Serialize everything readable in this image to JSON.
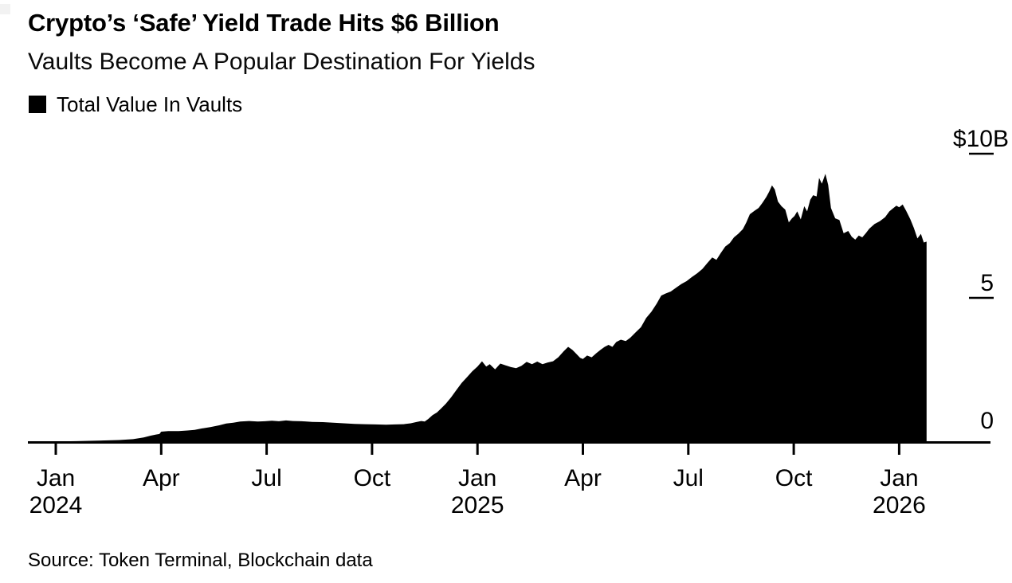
{
  "chart_data": {
    "type": "area",
    "title": "Crypto’s ‘Safe’ Yield Trade Hits $6 Billion",
    "subtitle": "Vaults Become A Popular Destination For Yields",
    "source": "Source: Token Terminal, Blockchain data",
    "background_color": "#ffffff",
    "axis_color": "#000000",
    "grid": false,
    "legend_position": "top-left",
    "series": [
      {
        "name": "Total Value In Vaults",
        "color": "#000000",
        "y_unit": "billions_usd",
        "x_unit": "months_since_jan_2024",
        "points": [
          [
            -0.79,
            0.01
          ],
          [
            -0.4,
            0.02
          ],
          [
            0,
            0.02
          ],
          [
            0.6,
            0.03
          ],
          [
            1.2,
            0.05
          ],
          [
            1.8,
            0.07
          ],
          [
            2.2,
            0.1
          ],
          [
            2.5,
            0.16
          ],
          [
            2.7,
            0.22
          ],
          [
            2.85,
            0.26
          ],
          [
            2.95,
            0.28
          ],
          [
            3.0,
            0.36
          ],
          [
            3.2,
            0.38
          ],
          [
            3.5,
            0.38
          ],
          [
            3.75,
            0.4
          ],
          [
            3.95,
            0.42
          ],
          [
            4.15,
            0.47
          ],
          [
            4.4,
            0.52
          ],
          [
            4.65,
            0.58
          ],
          [
            4.85,
            0.64
          ],
          [
            5.05,
            0.67
          ],
          [
            5.25,
            0.71
          ],
          [
            5.5,
            0.73
          ],
          [
            5.75,
            0.71
          ],
          [
            5.95,
            0.72
          ],
          [
            6.15,
            0.74
          ],
          [
            6.35,
            0.72
          ],
          [
            6.55,
            0.75
          ],
          [
            6.75,
            0.73
          ],
          [
            7.0,
            0.72
          ],
          [
            7.3,
            0.7
          ],
          [
            7.6,
            0.69
          ],
          [
            7.9,
            0.67
          ],
          [
            8.2,
            0.65
          ],
          [
            8.5,
            0.63
          ],
          [
            8.8,
            0.62
          ],
          [
            9.1,
            0.61
          ],
          [
            9.4,
            0.6
          ],
          [
            9.65,
            0.61
          ],
          [
            9.9,
            0.62
          ],
          [
            10.1,
            0.65
          ],
          [
            10.25,
            0.69
          ],
          [
            10.4,
            0.73
          ],
          [
            10.5,
            0.71
          ],
          [
            10.6,
            0.8
          ],
          [
            10.72,
            0.93
          ],
          [
            10.85,
            1.03
          ],
          [
            10.97,
            1.17
          ],
          [
            11.1,
            1.33
          ],
          [
            11.25,
            1.55
          ],
          [
            11.4,
            1.8
          ],
          [
            11.55,
            2.05
          ],
          [
            11.7,
            2.25
          ],
          [
            11.85,
            2.45
          ],
          [
            12.0,
            2.62
          ],
          [
            12.13,
            2.8
          ],
          [
            12.25,
            2.62
          ],
          [
            12.35,
            2.7
          ],
          [
            12.5,
            2.52
          ],
          [
            12.65,
            2.72
          ],
          [
            12.8,
            2.66
          ],
          [
            12.95,
            2.6
          ],
          [
            13.1,
            2.56
          ],
          [
            13.25,
            2.64
          ],
          [
            13.4,
            2.78
          ],
          [
            13.55,
            2.7
          ],
          [
            13.7,
            2.79
          ],
          [
            13.85,
            2.7
          ],
          [
            14.0,
            2.76
          ],
          [
            14.15,
            2.8
          ],
          [
            14.3,
            2.94
          ],
          [
            14.45,
            3.14
          ],
          [
            14.58,
            3.3
          ],
          [
            14.7,
            3.2
          ],
          [
            14.82,
            3.05
          ],
          [
            14.92,
            2.92
          ],
          [
            15.0,
            2.88
          ],
          [
            15.12,
            3.0
          ],
          [
            15.25,
            2.94
          ],
          [
            15.38,
            3.08
          ],
          [
            15.5,
            3.2
          ],
          [
            15.62,
            3.3
          ],
          [
            15.73,
            3.37
          ],
          [
            15.84,
            3.3
          ],
          [
            15.95,
            3.47
          ],
          [
            16.08,
            3.55
          ],
          [
            16.22,
            3.5
          ],
          [
            16.35,
            3.62
          ],
          [
            16.5,
            3.8
          ],
          [
            16.65,
            3.98
          ],
          [
            16.8,
            4.3
          ],
          [
            16.95,
            4.52
          ],
          [
            17.1,
            4.8
          ],
          [
            17.23,
            5.08
          ],
          [
            17.35,
            5.15
          ],
          [
            17.5,
            5.22
          ],
          [
            17.65,
            5.35
          ],
          [
            17.8,
            5.48
          ],
          [
            17.95,
            5.58
          ],
          [
            18.1,
            5.72
          ],
          [
            18.25,
            5.85
          ],
          [
            18.4,
            6.0
          ],
          [
            18.55,
            6.22
          ],
          [
            18.68,
            6.4
          ],
          [
            18.8,
            6.32
          ],
          [
            18.92,
            6.55
          ],
          [
            19.05,
            6.78
          ],
          [
            19.18,
            6.9
          ],
          [
            19.3,
            7.1
          ],
          [
            19.42,
            7.22
          ],
          [
            19.55,
            7.38
          ],
          [
            19.65,
            7.62
          ],
          [
            19.75,
            7.9
          ],
          [
            19.88,
            8.02
          ],
          [
            20.0,
            8.12
          ],
          [
            20.1,
            8.28
          ],
          [
            20.22,
            8.5
          ],
          [
            20.3,
            8.68
          ],
          [
            20.38,
            8.9
          ],
          [
            20.46,
            8.76
          ],
          [
            20.55,
            8.34
          ],
          [
            20.65,
            8.18
          ],
          [
            20.76,
            8.06
          ],
          [
            20.86,
            7.62
          ],
          [
            20.95,
            7.76
          ],
          [
            21.02,
            7.84
          ],
          [
            21.1,
            8.0
          ],
          [
            21.2,
            7.72
          ],
          [
            21.3,
            8.18
          ],
          [
            21.38,
            8.0
          ],
          [
            21.47,
            8.4
          ],
          [
            21.55,
            8.56
          ],
          [
            21.65,
            8.52
          ],
          [
            21.72,
            9.16
          ],
          [
            21.8,
            8.96
          ],
          [
            21.9,
            9.3
          ],
          [
            21.98,
            8.92
          ],
          [
            22.06,
            8.12
          ],
          [
            22.18,
            7.76
          ],
          [
            22.3,
            7.7
          ],
          [
            22.42,
            7.24
          ],
          [
            22.55,
            7.32
          ],
          [
            22.65,
            7.12
          ],
          [
            22.75,
            7.02
          ],
          [
            22.85,
            7.16
          ],
          [
            22.95,
            7.1
          ],
          [
            23.05,
            7.24
          ],
          [
            23.15,
            7.4
          ],
          [
            23.3,
            7.56
          ],
          [
            23.45,
            7.66
          ],
          [
            23.6,
            7.8
          ],
          [
            23.72,
            8.0
          ],
          [
            23.82,
            8.1
          ],
          [
            23.92,
            8.2
          ],
          [
            24.0,
            8.14
          ],
          [
            24.1,
            8.24
          ],
          [
            24.2,
            8.02
          ],
          [
            24.32,
            7.72
          ],
          [
            24.42,
            7.42
          ],
          [
            24.52,
            7.06
          ],
          [
            24.62,
            7.22
          ],
          [
            24.7,
            6.92
          ],
          [
            24.78,
            6.95
          ]
        ]
      }
    ],
    "x_axis": {
      "ticks": [
        {
          "month": 0,
          "label": "Jan",
          "year_label": "2024"
        },
        {
          "month": 3,
          "label": "Apr"
        },
        {
          "month": 6,
          "label": "Jul"
        },
        {
          "month": 9,
          "label": "Oct"
        },
        {
          "month": 12,
          "label": "Jan",
          "year_label": "2025"
        },
        {
          "month": 15,
          "label": "Apr"
        },
        {
          "month": 18,
          "label": "Jul"
        },
        {
          "month": 21,
          "label": "Oct"
        },
        {
          "month": 24,
          "label": "Jan",
          "year_label": "2026"
        }
      ]
    },
    "y_axis": {
      "range_billions": [
        0,
        10
      ],
      "ticks": [
        {
          "value": 10,
          "label": "$10B"
        },
        {
          "value": 5,
          "label": "5"
        },
        {
          "value": 0,
          "label": "0"
        }
      ]
    }
  }
}
